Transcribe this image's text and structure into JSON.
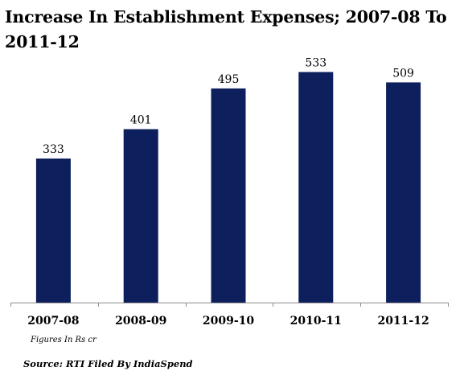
{
  "chart_data": {
    "type": "bar",
    "title": "Increase In Establishment Expenses; 2007-08 To 2011-12",
    "categories": [
      "2007-08",
      "2008-09",
      "2009-10",
      "2010-11",
      "2011-12"
    ],
    "values": [
      333,
      401,
      495,
      533,
      509
    ],
    "value_labels": [
      "333",
      "401",
      "495",
      "533",
      "509"
    ],
    "xlabel": "",
    "ylabel": "",
    "ylim": [
      0,
      560
    ],
    "grid": false,
    "legend": "none",
    "bar_color": "#0d1f5c",
    "axis_color": "#8c8c8c"
  },
  "notes": {
    "figures": "Figures In Rs cr",
    "source": "Source: RTI Filed By IndiaSpend"
  }
}
